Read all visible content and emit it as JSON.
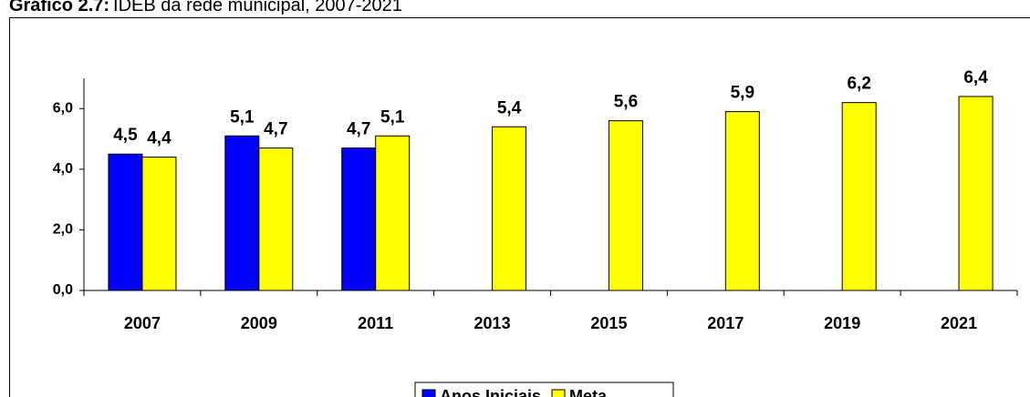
{
  "chart_data": {
    "type": "bar",
    "title_number": "Gráfico 2.7:",
    "title": "IDEB da rede municipal, 2007-2021",
    "categories": [
      "2007",
      "2009",
      "2011",
      "2013",
      "2015",
      "2017",
      "2019",
      "2021"
    ],
    "series": [
      {
        "name": "Anos Iniciais",
        "color": "#0000ff",
        "values": [
          4.5,
          5.1,
          4.7,
          null,
          null,
          null,
          null,
          null
        ],
        "value_labels": [
          "4,5",
          "5,1",
          "4,7",
          null,
          null,
          null,
          null,
          null
        ]
      },
      {
        "name": "Meta",
        "color": "#ffff00",
        "values": [
          4.4,
          4.7,
          5.1,
          5.4,
          5.6,
          5.9,
          6.2,
          6.4
        ],
        "value_labels": [
          "4,4",
          "4,7",
          "5,1",
          "5,4",
          "5,6",
          "5,9",
          "6,2",
          "6,4"
        ]
      }
    ],
    "ylim": [
      0,
      7
    ],
    "yticks": [
      {
        "value": 0,
        "label": "0,0"
      },
      {
        "value": 2,
        "label": "2,0"
      },
      {
        "value": 4,
        "label": "4,0"
      },
      {
        "value": 6,
        "label": "6,0"
      }
    ],
    "grid": false,
    "legend": "bottom"
  }
}
